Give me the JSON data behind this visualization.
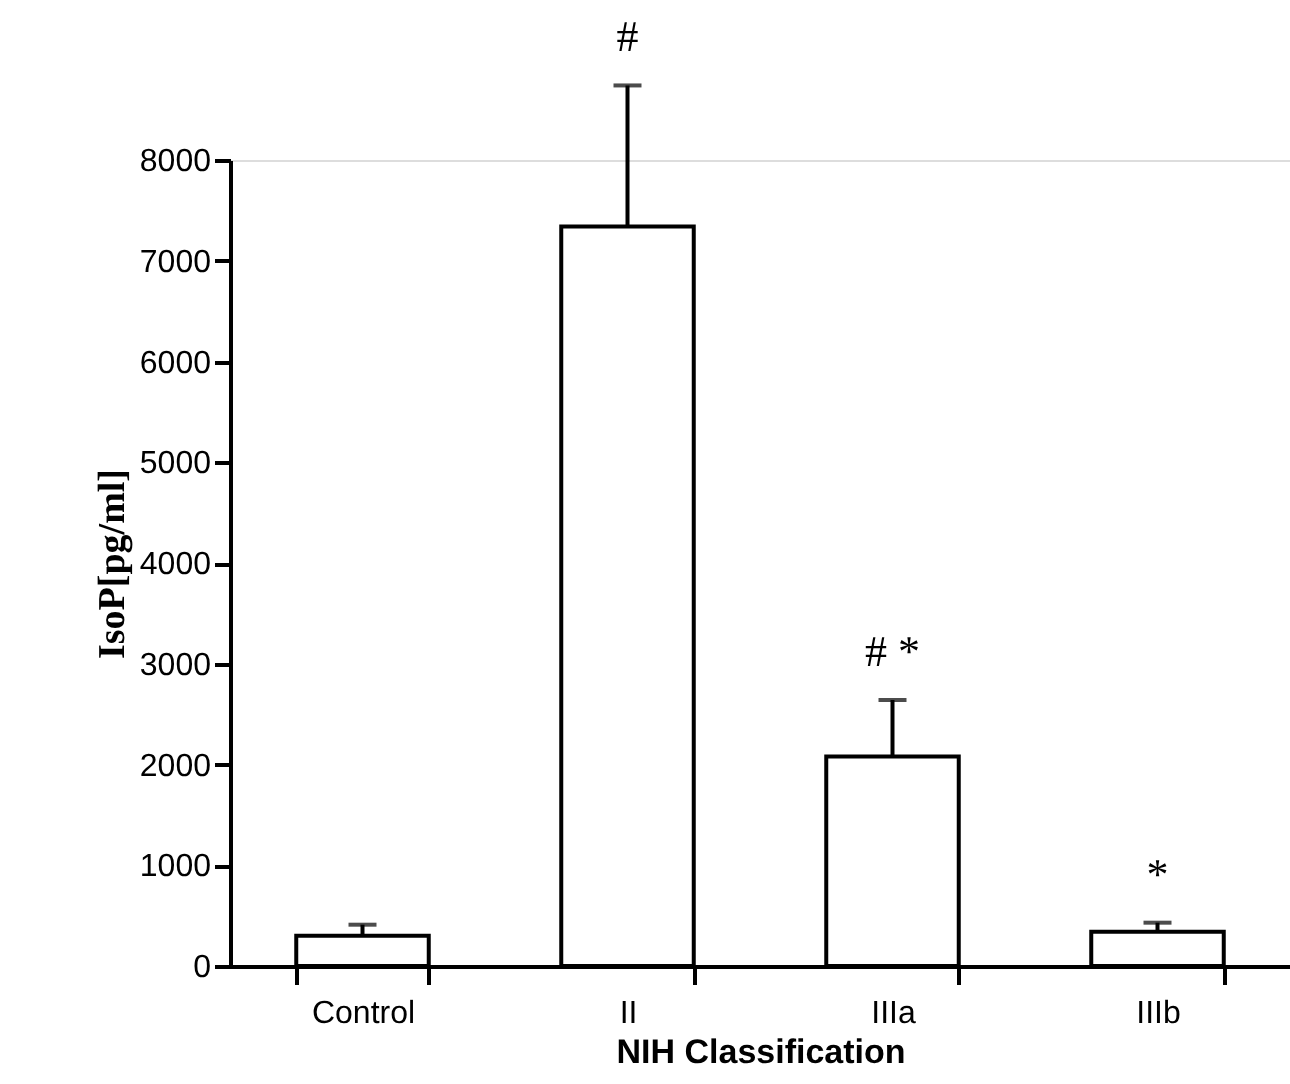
{
  "chart_data": {
    "type": "bar",
    "xlabel": "NIH Classification",
    "ylabel": "IsoP[pg/ml]",
    "categories": [
      "Control",
      "II",
      "IIIa",
      "IIIb"
    ],
    "values": [
      300,
      7340,
      2080,
      340
    ],
    "errors": [
      [
        300,
        410
      ],
      [
        7340,
        8740
      ],
      [
        2080,
        2640
      ],
      [
        340,
        430
      ]
    ],
    "color": "#ffffff",
    "ylim": [
      0,
      8000
    ],
    "yticks": [
      0,
      1000,
      2000,
      3000,
      4000,
      5000,
      6000,
      7000,
      8000
    ],
    "grid": false,
    "annotations": [
      {
        "text": "#",
        "x": "II",
        "y": 8740
      },
      {
        "text": "# *",
        "x": "IIIa",
        "y": 2640
      },
      {
        "text": "*",
        "x": "IIIb",
        "y": 430
      }
    ]
  }
}
